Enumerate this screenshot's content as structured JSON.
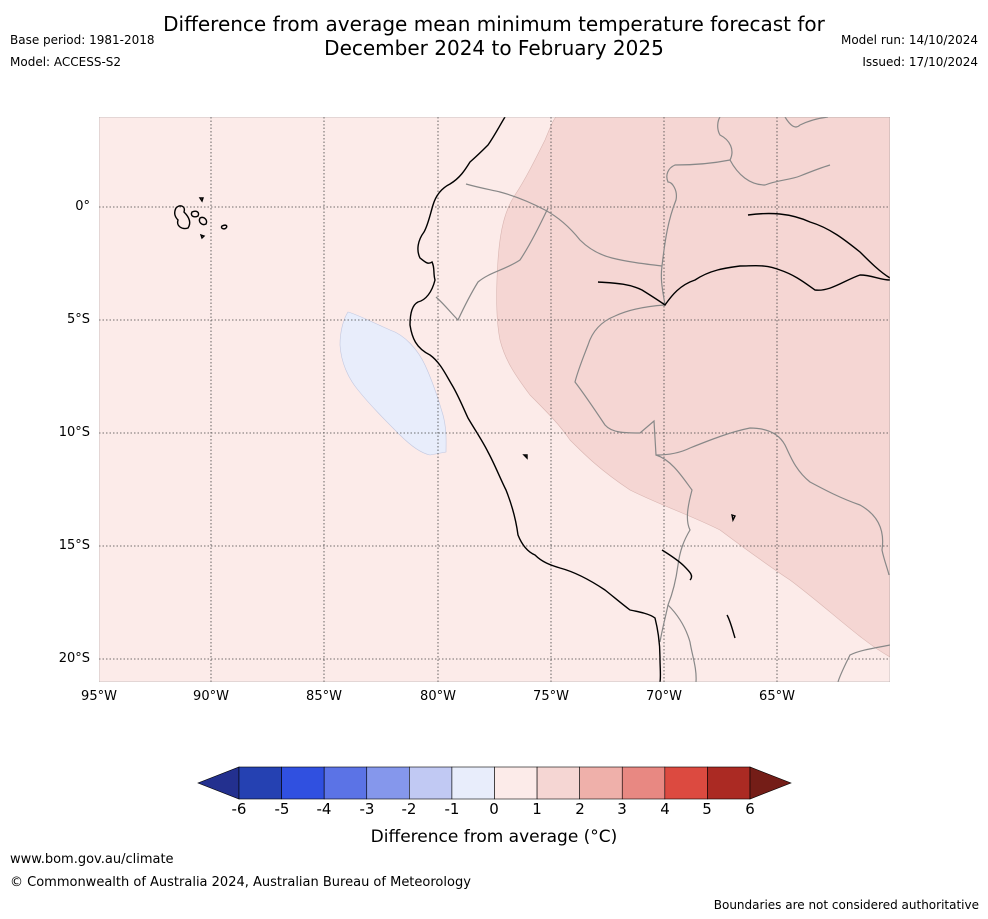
{
  "header": {
    "title_line1": "Difference from average mean minimum temperature forecast for",
    "title_line2": "December 2024 to February 2025",
    "base_period": "Base period: 1981-2018",
    "model": "Model: ACCESS-S2",
    "model_run": "Model run: 14/10/2024",
    "issued": "Issued: 17/10/2024"
  },
  "map": {
    "lat_labels": [
      "0°",
      "5°S",
      "10°S",
      "15°S",
      "20°S"
    ],
    "lon_labels": [
      "95°W",
      "90°W",
      "85°W",
      "80°W",
      "75°W",
      "70°W",
      "65°W"
    ],
    "ocean_color": "#fcebe9",
    "warm_region_color": "#f5d6d3",
    "cool_region_color": "#e8edfb",
    "coastline_color": "#000000",
    "border_color": "#808080"
  },
  "colorbar": {
    "ticks": [
      "-6",
      "-5",
      "-4",
      "-3",
      "-2",
      "-1",
      "0",
      "1",
      "2",
      "3",
      "4",
      "5",
      "6"
    ],
    "colors": [
      "#23308f",
      "#2541b2",
      "#3050e0",
      "#5b73e6",
      "#8597ec",
      "#c1c9f3",
      "#e8edfb",
      "#fcebe9",
      "#f5d6d3",
      "#efb0aa",
      "#e88882",
      "#dc4a40",
      "#ab2a23",
      "#741d17"
    ],
    "label": "Difference from average (°C)"
  },
  "footer": {
    "website": "www.bom.gov.au/climate",
    "copyright": "© Commonwealth of Australia 2024, Australian Bureau of Meteorology",
    "disclaimer": "Boundaries are not considered authoritative"
  }
}
